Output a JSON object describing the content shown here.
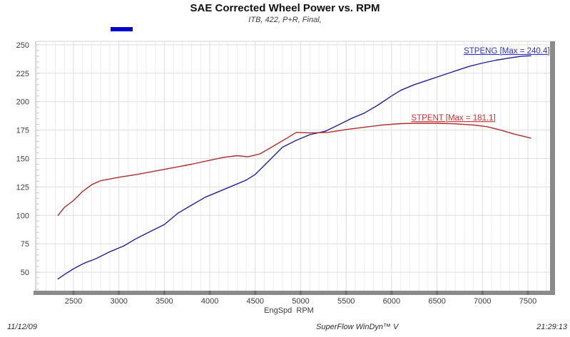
{
  "header": {
    "title": "SAE Corrected Wheel Power vs. RPM",
    "subtitle": "ITB, 422, P+R, Final,"
  },
  "footer": {
    "date": "11/12/09",
    "app": "SuperFlow WinDyn™ V",
    "time": "21:29:13"
  },
  "chart_data": {
    "type": "line",
    "title": "SAE Corrected Wheel Power vs. RPM",
    "subtitle": "ITB, 422, P+R, Final,",
    "xlabel": "EngSpd  RPM",
    "ylabel": "",
    "xlim": [
      2084,
      7743
    ],
    "ylim": [
      33.75,
      253.1
    ],
    "x_ticks": [
      2500,
      3000,
      3500,
      4000,
      4500,
      5000,
      5500,
      6000,
      6500,
      7000,
      7500
    ],
    "y_ticks": [
      50,
      75,
      100,
      125,
      150,
      175,
      200,
      225,
      250
    ],
    "x_minor_step": 100,
    "y_minor_step": 5,
    "y_minor_range": [
      35,
      250
    ],
    "grid": true,
    "legend_swatch_color": "#0000cc",
    "frame_colors": {
      "thick_border": "#8a8a8a",
      "thin_border": "#b5b5b5",
      "top_border": "#d6d6d6",
      "major_grid": "#dddddd",
      "minor_grid": "#ededed",
      "minor_tick": "#c9c9c9",
      "axis_notch": "#6f6f6f"
    },
    "series": [
      {
        "name": "STPENG",
        "label": "STPENG [Max = 240.4]",
        "max": 240.4,
        "color": "#2020a0",
        "label_color": "#3030cc",
        "label_anchor": {
          "rpm": 7740,
          "value": 242.5,
          "align": "end"
        },
        "points": [
          [
            2330,
            44
          ],
          [
            2400,
            48
          ],
          [
            2500,
            53
          ],
          [
            2620,
            58
          ],
          [
            2750,
            62
          ],
          [
            2900,
            68
          ],
          [
            3050,
            73
          ],
          [
            3200,
            80
          ],
          [
            3350,
            86
          ],
          [
            3500,
            92
          ],
          [
            3650,
            102
          ],
          [
            3800,
            109
          ],
          [
            3950,
            116
          ],
          [
            4100,
            121
          ],
          [
            4250,
            126
          ],
          [
            4400,
            131
          ],
          [
            4500,
            136
          ],
          [
            4650,
            148
          ],
          [
            4800,
            160
          ],
          [
            4950,
            166
          ],
          [
            5100,
            171
          ],
          [
            5270,
            174
          ],
          [
            5400,
            179
          ],
          [
            5550,
            185
          ],
          [
            5700,
            190
          ],
          [
            5850,
            197
          ],
          [
            6000,
            205
          ],
          [
            6100,
            210
          ],
          [
            6250,
            215
          ],
          [
            6400,
            219
          ],
          [
            6550,
            223
          ],
          [
            6700,
            227
          ],
          [
            6850,
            231
          ],
          [
            7000,
            234
          ],
          [
            7150,
            236.5
          ],
          [
            7300,
            238.5
          ],
          [
            7430,
            240
          ],
          [
            7530,
            240.4
          ]
        ]
      },
      {
        "name": "STPENT",
        "label": "STPENT [Max = 181.1]",
        "max": 181.1,
        "color": "#b02a2a",
        "label_color": "#cc3333",
        "label_anchor": {
          "rpm": 6680,
          "value": 183.5,
          "align": "middle"
        },
        "points": [
          [
            2330,
            100
          ],
          [
            2400,
            107
          ],
          [
            2500,
            113
          ],
          [
            2600,
            121
          ],
          [
            2700,
            127
          ],
          [
            2800,
            130.5
          ],
          [
            2900,
            132
          ],
          [
            3000,
            133.5
          ],
          [
            3200,
            136
          ],
          [
            3400,
            139
          ],
          [
            3600,
            142
          ],
          [
            3800,
            145
          ],
          [
            4000,
            148.5
          ],
          [
            4150,
            151
          ],
          [
            4300,
            152.5
          ],
          [
            4420,
            151.5
          ],
          [
            4550,
            154
          ],
          [
            4700,
            161
          ],
          [
            4850,
            168
          ],
          [
            4950,
            173
          ],
          [
            5100,
            172.5
          ],
          [
            5300,
            173
          ],
          [
            5500,
            175.5
          ],
          [
            5700,
            177.5
          ],
          [
            5900,
            179.5
          ],
          [
            6100,
            180.7
          ],
          [
            6300,
            181.1
          ],
          [
            6500,
            181
          ],
          [
            6700,
            180.5
          ],
          [
            6900,
            179.5
          ],
          [
            7050,
            178
          ],
          [
            7200,
            175
          ],
          [
            7350,
            171.5
          ],
          [
            7530,
            168
          ]
        ]
      }
    ]
  }
}
